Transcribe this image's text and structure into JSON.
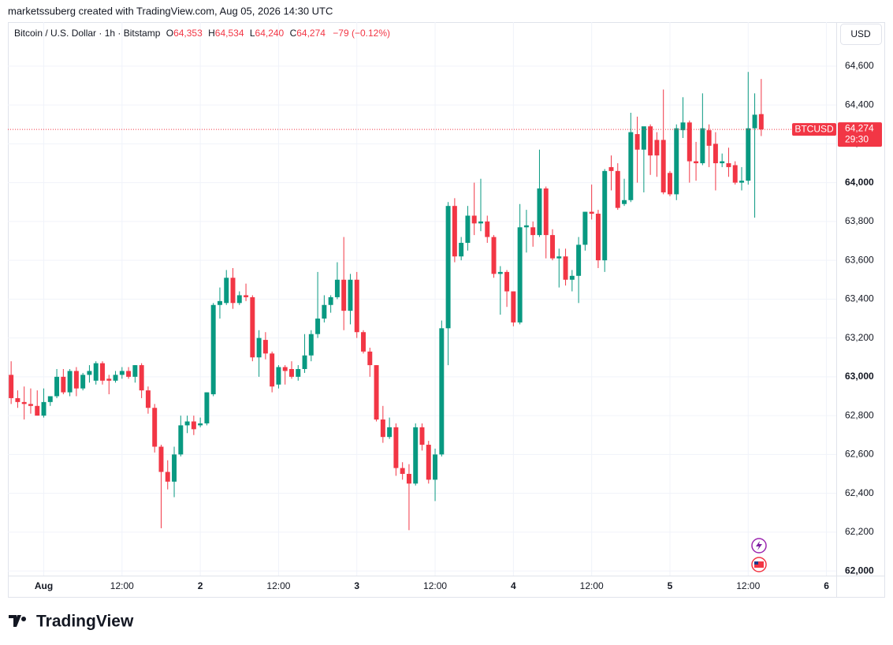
{
  "watermark": "marketssuberg created with TradingView.com, Aug 05, 2026 14:30 UTC",
  "logo": "TradingView",
  "currency": "USD",
  "chart_data": {
    "type": "candlestick",
    "title": "Bitcoin / U.S. Dollar · 1h · Bitstamp",
    "legend": {
      "o_label": "O",
      "o_value": "64,353",
      "h_label": "H",
      "h_value": "64,534",
      "l_label": "L",
      "l_value": "64,240",
      "c_label": "C",
      "c_value": "64,274",
      "change": "−79 (−0.12%)"
    },
    "last_price_tag": {
      "symbol": "BTCUSD",
      "price": "64,274",
      "countdown": "29:30"
    },
    "up_color": "#089981",
    "down_color": "#f23645",
    "grid": true,
    "xlim": [
      -0.5,
      126.5
    ],
    "xticks": [
      {
        "value": 5,
        "label": "Aug"
      },
      {
        "value": 17,
        "label": "12:00"
      },
      {
        "value": 29,
        "label": "2"
      },
      {
        "value": 41,
        "label": "12:00"
      },
      {
        "value": 53,
        "label": "3"
      },
      {
        "value": 65,
        "label": "12:00"
      },
      {
        "value": 77,
        "label": "4"
      },
      {
        "value": 89,
        "label": "12:00"
      },
      {
        "value": 101,
        "label": "5"
      },
      {
        "value": 113,
        "label": "12:00"
      },
      {
        "value": 125,
        "label": "6"
      }
    ],
    "ylim": [
      61976,
      64827
    ],
    "yticks": [
      {
        "value": 62000,
        "label": "62,000"
      },
      {
        "value": 62200,
        "label": "62,200"
      },
      {
        "value": 62400,
        "label": "62,400"
      },
      {
        "value": 62600,
        "label": "62,600"
      },
      {
        "value": 62800,
        "label": "62,800"
      },
      {
        "value": 63000,
        "label": "63,000"
      },
      {
        "value": 63200,
        "label": "63,200"
      },
      {
        "value": 63400,
        "label": "63,400"
      },
      {
        "value": 63600,
        "label": "63,600"
      },
      {
        "value": 63800,
        "label": "63,800"
      },
      {
        "value": 64000,
        "label": "64,000"
      },
      {
        "value": 64200,
        "label": "64,200"
      },
      {
        "value": 64400,
        "label": "64,400"
      },
      {
        "value": 64600,
        "label": "64,600"
      }
    ],
    "open": [
      63010,
      62890,
      62870,
      62860,
      62850,
      62800,
      62870,
      62900,
      63000,
      62920,
      63030,
      62940,
      63010,
      62980,
      63070,
      62990,
      62980,
      63010,
      63030,
      63000,
      63060,
      62930,
      62840,
      62640,
      62510,
      62460,
      62600,
      62750,
      62770,
      62750,
      62760,
      62910,
      63370,
      63380,
      63510,
      63380,
      63420,
      63410,
      63100,
      63190,
      63120,
      62960,
      63050,
      63040,
      63000,
      63040,
      63110,
      63220,
      63300,
      63370,
      63410,
      63500,
      63340,
      63500,
      63230,
      63130,
      63060,
      62780,
      62690,
      62740,
      62530,
      62500,
      62450,
      62740,
      62650,
      62470,
      62600,
      63250,
      63880,
      63620,
      63690,
      63830,
      63790,
      63800,
      63720,
      63530,
      63540,
      63440,
      63280,
      63770,
      63770,
      63730,
      63970,
      63730,
      63610,
      63620,
      63500,
      63520,
      63680,
      63850,
      63840,
      63600,
      64080,
      64060,
      63890,
      63910,
      64250,
      64170,
      64290,
      64220,
      64220,
      64050,
      63940,
      64270,
      64310,
      64110,
      64100,
      64270,
      64200,
      64100,
      64100,
      64090,
      64000,
      64010,
      64280,
      64353
    ],
    "high": [
      63080,
      62930,
      62950,
      62940,
      62930,
      62940,
      62900,
      63040,
      63040,
      63040,
      63050,
      63020,
      63060,
      63080,
      63080,
      63010,
      63030,
      63050,
      63050,
      63060,
      63070,
      62950,
      62860,
      62650,
      62570,
      62640,
      62800,
      62800,
      62800,
      62790,
      62920,
      63380,
      63460,
      63550,
      63560,
      63440,
      63480,
      63420,
      63240,
      63230,
      63130,
      63060,
      63060,
      63080,
      63060,
      63220,
      63240,
      63540,
      63420,
      63420,
      63590,
      63720,
      63530,
      63540,
      63240,
      63150,
      63060,
      62850,
      62790,
      62760,
      62560,
      62550,
      62760,
      62760,
      62670,
      62630,
      63290,
      63900,
      63920,
      63720,
      63880,
      64000,
      64020,
      63830,
      63730,
      63570,
      63550,
      63440,
      63890,
      63860,
      63800,
      64170,
      63980,
      63760,
      63660,
      63660,
      63550,
      63720,
      63850,
      63990,
      63860,
      64070,
      64140,
      64100,
      64020,
      64360,
      64340,
      64280,
      64300,
      64260,
      64480,
      64060,
      64300,
      64440,
      64320,
      64210,
      64460,
      64300,
      64260,
      64150,
      64180,
      64110,
      64080,
      64570,
      64460,
      64534
    ],
    "low": [
      62860,
      62840,
      62780,
      62810,
      62800,
      62790,
      62850,
      62890,
      62910,
      62900,
      62900,
      62930,
      62970,
      62960,
      62960,
      62910,
      62970,
      62990,
      62990,
      62970,
      62890,
      62810,
      62610,
      62220,
      62420,
      62380,
      62590,
      62710,
      62700,
      62740,
      62750,
      62900,
      63300,
      63370,
      63350,
      63370,
      63390,
      63080,
      63000,
      63090,
      62920,
      62940,
      62960,
      62990,
      62980,
      63020,
      63080,
      63200,
      63280,
      63330,
      63400,
      63240,
      63270,
      63200,
      63120,
      63000,
      62770,
      62660,
      62680,
      62490,
      62470,
      62210,
      62440,
      62620,
      62450,
      62360,
      62590,
      63060,
      63590,
      63600,
      63650,
      63730,
      63750,
      63690,
      63510,
      63320,
      63360,
      63260,
      63270,
      63640,
      63670,
      63720,
      63610,
      63600,
      63460,
      63470,
      63440,
      63380,
      63650,
      63810,
      63560,
      63540,
      63960,
      63860,
      63880,
      63900,
      64000,
      63950,
      64040,
      64030,
      63940,
      63930,
      63910,
      64230,
      64000,
      64010,
      64090,
      64080,
      63960,
      64080,
      64030,
      63990,
      63960,
      63990,
      63820,
      64240
    ],
    "close": [
      62890,
      62870,
      62860,
      62850,
      62800,
      62870,
      62900,
      63000,
      62920,
      63030,
      62940,
      63010,
      63030,
      63070,
      62980,
      62980,
      63010,
      63030,
      63000,
      63060,
      62930,
      62840,
      62640,
      62510,
      62460,
      62600,
      62750,
      62770,
      62730,
      62760,
      62920,
      63370,
      63390,
      63510,
      63380,
      63420,
      63410,
      63100,
      63200,
      63120,
      62950,
      63050,
      63030,
      63000,
      63040,
      63110,
      63220,
      63300,
      63370,
      63410,
      63500,
      63340,
      63500,
      63230,
      63130,
      63060,
      62780,
      62690,
      62740,
      62530,
      62500,
      62450,
      62740,
      62650,
      62470,
      62600,
      63250,
      63880,
      63620,
      63690,
      63830,
      63790,
      63800,
      63720,
      63530,
      63540,
      63440,
      63280,
      63770,
      63780,
      63730,
      63970,
      63730,
      63610,
      63620,
      63500,
      63520,
      63680,
      63850,
      63840,
      63600,
      64060,
      64060,
      63870,
      63910,
      64260,
      64170,
      64290,
      64140,
      64140,
      63950,
      63940,
      64280,
      64310,
      64110,
      64100,
      64280,
      64190,
      64100,
      64110,
      64080,
      64000,
      64010,
      64280,
      64350,
      64274
    ]
  }
}
